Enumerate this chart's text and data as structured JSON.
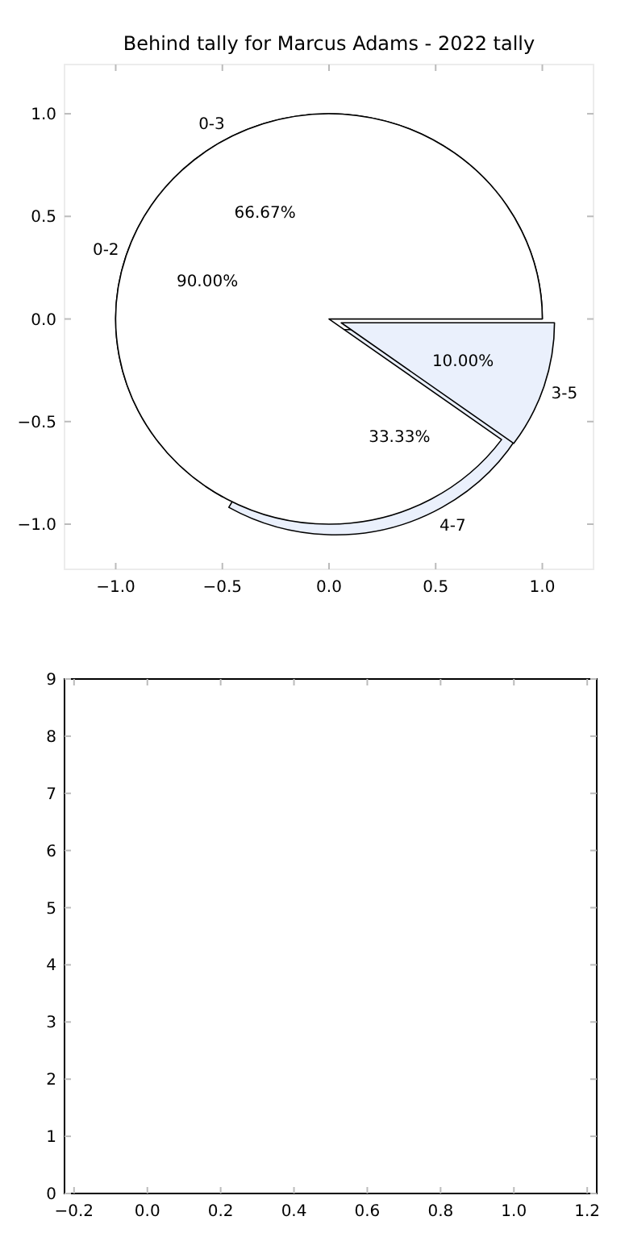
{
  "chart_data": [
    {
      "type": "scatter",
      "title": "Behind tally for Marcus Adams - 2022 tally",
      "xlim": [
        -1.24,
        1.24
      ],
      "ylim": [
        -1.22,
        1.24
      ],
      "xticks": [
        {
          "value": -1,
          "label": "−1.0"
        },
        {
          "value": -0.5,
          "label": "−0.5"
        },
        {
          "value": 0,
          "label": "0.0"
        },
        {
          "value": 0.5,
          "label": "0.5"
        },
        {
          "value": 1,
          "label": "1.0"
        }
      ],
      "yticks": [
        {
          "value": -1,
          "label": "−1.0"
        },
        {
          "value": -0.5,
          "label": "−0.5"
        },
        {
          "value": 0,
          "label": "0.0"
        },
        {
          "value": 0.5,
          "label": "0.5"
        },
        {
          "value": 1,
          "label": "1.0"
        }
      ]
    },
    {
      "type": "pie",
      "categories": [
        "0-3",
        "4-7"
      ],
      "values": [
        66.67,
        33.33
      ],
      "colors": [
        "#ffffff",
        "#eaf0fc"
      ],
      "value_labels": [
        "66.67%",
        "33.33%"
      ]
    },
    {
      "type": "pie",
      "categories": [
        "0-2",
        "3-5"
      ],
      "values": [
        90,
        10
      ],
      "colors": [
        "#ffffff",
        "#eaf0fc"
      ],
      "value_labels": [
        "90.00%",
        "10.00%"
      ]
    },
    {
      "type": "scatter",
      "xlim": [
        -0.226,
        1.226
      ],
      "ylim": [
        0,
        9
      ],
      "xticks": [
        {
          "value": -0.2,
          "label": "−0.2"
        },
        {
          "value": 0,
          "label": "0.0"
        },
        {
          "value": 0.2,
          "label": "0.2"
        },
        {
          "value": 0.4,
          "label": "0.4"
        },
        {
          "value": 0.6,
          "label": "0.6"
        },
        {
          "value": 0.8,
          "label": "0.8"
        },
        {
          "value": 1,
          "label": "1.0"
        },
        {
          "value": 1.2,
          "label": "1.2"
        }
      ],
      "yticks": [
        0,
        1,
        2,
        3,
        4,
        5,
        6,
        7,
        8,
        9
      ]
    }
  ]
}
